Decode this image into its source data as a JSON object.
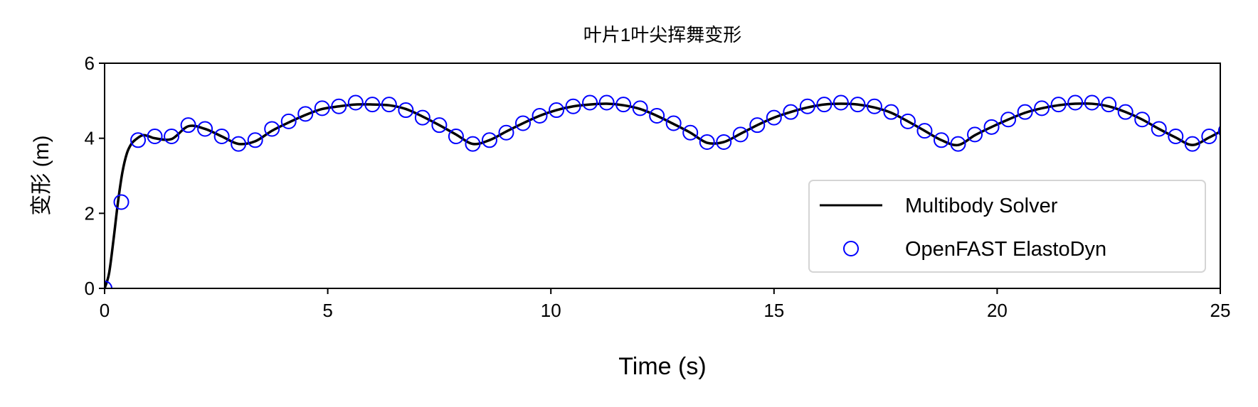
{
  "chart_data": {
    "type": "line",
    "title": "叶片1叶尖挥舞变形",
    "xlabel": "Time (s)",
    "ylabel": "变形 (m)",
    "xlim": [
      0,
      25
    ],
    "ylim": [
      0,
      6
    ],
    "xticks": [
      "0",
      "5",
      "10",
      "15",
      "20",
      "25"
    ],
    "yticks": [
      "0",
      "2",
      "4",
      "6"
    ],
    "grid": false,
    "legend_position": "lower-right",
    "series": [
      {
        "name": "Multibody Solver",
        "style": "line",
        "color": "#000000",
        "x": [
          0,
          0.1,
          0.2,
          0.3,
          0.4,
          0.5,
          0.6,
          0.7,
          0.85,
          1.0,
          1.125,
          1.5,
          1.875,
          2.25,
          2.625,
          3.0,
          3.375,
          3.75,
          4.125,
          4.5,
          4.875,
          5.25,
          5.625,
          6.0,
          6.375,
          6.75,
          7.125,
          7.5,
          7.875,
          8.25,
          8.625,
          9.0,
          9.375,
          9.75,
          10.125,
          10.5,
          10.875,
          11.25,
          11.625,
          12.0,
          12.375,
          12.75,
          13.125,
          13.5,
          13.875,
          14.25,
          14.625,
          15.0,
          15.375,
          15.75,
          16.125,
          16.5,
          16.875,
          17.25,
          17.625,
          18.0,
          18.375,
          18.75,
          19.125,
          19.5,
          19.875,
          20.25,
          20.625,
          21.0,
          21.375,
          21.75,
          22.125,
          22.5,
          22.875,
          23.25,
          23.625,
          24.0,
          24.375,
          24.75,
          25.0
        ],
        "y": [
          0,
          0.4,
          1.3,
          2.3,
          3.1,
          3.6,
          3.85,
          3.97,
          4.08,
          4.05,
          4.0,
          3.98,
          4.32,
          4.25,
          4.05,
          3.85,
          3.92,
          4.2,
          4.42,
          4.62,
          4.78,
          4.85,
          4.9,
          4.9,
          4.88,
          4.78,
          4.58,
          4.35,
          4.1,
          3.85,
          3.95,
          4.18,
          4.4,
          4.6,
          4.75,
          4.85,
          4.9,
          4.92,
          4.88,
          4.78,
          4.6,
          4.38,
          4.15,
          3.88,
          3.9,
          4.12,
          4.35,
          4.55,
          4.7,
          4.82,
          4.9,
          4.92,
          4.9,
          4.82,
          4.68,
          4.45,
          4.2,
          3.95,
          3.82,
          4.08,
          4.3,
          4.5,
          4.68,
          4.8,
          4.88,
          4.92,
          4.92,
          4.85,
          4.7,
          4.5,
          4.25,
          4.02,
          3.82,
          4.02,
          4.18
        ]
      },
      {
        "name": "OpenFAST ElastoDyn",
        "style": "scatter-open-circle",
        "color": "#0000ff",
        "x": [
          0,
          0.375,
          0.75,
          1.125,
          1.5,
          1.875,
          2.25,
          2.625,
          3.0,
          3.375,
          3.75,
          4.125,
          4.5,
          4.875,
          5.25,
          5.625,
          6.0,
          6.375,
          6.75,
          7.125,
          7.5,
          7.875,
          8.25,
          8.625,
          9.0,
          9.375,
          9.75,
          10.125,
          10.5,
          10.875,
          11.25,
          11.625,
          12.0,
          12.375,
          12.75,
          13.125,
          13.5,
          13.875,
          14.25,
          14.625,
          15.0,
          15.375,
          15.75,
          16.125,
          16.5,
          16.875,
          17.25,
          17.625,
          18.0,
          18.375,
          18.75,
          19.125,
          19.5,
          19.875,
          20.25,
          20.625,
          21.0,
          21.375,
          21.75,
          22.125,
          22.5,
          22.875,
          23.25,
          23.625,
          24.0,
          24.375,
          24.75,
          25.125
        ],
        "y": [
          0,
          2.3,
          3.95,
          4.05,
          4.05,
          4.35,
          4.25,
          4.05,
          3.85,
          3.95,
          4.25,
          4.45,
          4.65,
          4.8,
          4.85,
          4.95,
          4.9,
          4.9,
          4.75,
          4.55,
          4.35,
          4.05,
          3.85,
          3.95,
          4.15,
          4.4,
          4.6,
          4.75,
          4.85,
          4.95,
          4.95,
          4.9,
          4.8,
          4.6,
          4.4,
          4.15,
          3.9,
          3.9,
          4.1,
          4.35,
          4.55,
          4.7,
          4.85,
          4.9,
          4.95,
          4.9,
          4.85,
          4.7,
          4.45,
          4.2,
          3.95,
          3.85,
          4.1,
          4.3,
          4.5,
          4.7,
          4.8,
          4.9,
          4.95,
          4.95,
          4.9,
          4.7,
          4.5,
          4.25,
          4.05,
          3.85,
          4.05,
          4.2
        ]
      }
    ]
  }
}
